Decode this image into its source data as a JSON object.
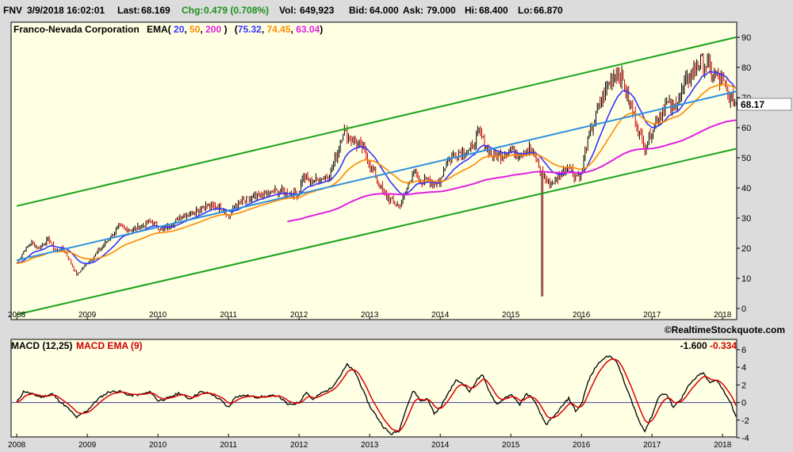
{
  "quote": {
    "symbol": "FNV",
    "datetime": "3/9/2018 16:02:01",
    "last_label": "Last:",
    "last": "68.169",
    "chg_label": "Chg:",
    "chg": "0.479 (0.708%)",
    "vol_label": "Vol:",
    "vol": "649,923",
    "bid_label": "Bid:",
    "bid": "64.000",
    "ask_label": "Ask:",
    "ask": "79.000",
    "hi_label": "Hi:",
    "hi": "68.400",
    "lo_label": "Lo:",
    "lo": "66.870"
  },
  "price_panel": {
    "company": "Franco-Nevada Corporation",
    "ema_label": "EMA(",
    "ema_periods": [
      "20",
      "50",
      "200"
    ],
    "ema_close": ")",
    "ema_values": [
      "75.32",
      "74.45",
      "63.04"
    ],
    "last_price": "68.17",
    "copyright": "©RealtimeStockquote.com"
  },
  "macd_panel": {
    "label": "MACD (12,25)",
    "ema_label": "MACD EMA (9)",
    "macd_value": "-1.600",
    "signal_value": "-0.334"
  },
  "colors": {
    "panel_bg": "#ffffe4",
    "ema20": "#3333ff",
    "ema50": "#ff8800",
    "ema200": "#e020e0",
    "channel": "#1aa31a",
    "regression": "#2f8fdd",
    "up_bar": "#000000",
    "down_bar": "#cc0000",
    "macd": "#000000",
    "macd_signal": "#dd0000",
    "zero_line": "#4040a0"
  },
  "chart_data": [
    {
      "type": "line",
      "panel": "price",
      "title": "Franco-Nevada Corporation",
      "ylim": [
        0,
        90
      ],
      "yticks": [
        0,
        10,
        20,
        30,
        40,
        50,
        60,
        70,
        80,
        90
      ],
      "xlim": [
        2007.92,
        2018.2
      ],
      "xticks": [
        "2008",
        "2009",
        "2010",
        "2011",
        "2012",
        "2013",
        "2014",
        "2015",
        "2016",
        "2017",
        "2018"
      ],
      "grid": false,
      "price_path": [
        [
          2008.0,
          15
        ],
        [
          2008.1,
          19
        ],
        [
          2008.2,
          22
        ],
        [
          2008.3,
          20
        ],
        [
          2008.45,
          23
        ],
        [
          2008.55,
          19
        ],
        [
          2008.65,
          20
        ],
        [
          2008.75,
          16
        ],
        [
          2008.85,
          11
        ],
        [
          2008.95,
          14
        ],
        [
          2009.05,
          16
        ],
        [
          2009.15,
          19
        ],
        [
          2009.3,
          23
        ],
        [
          2009.45,
          27
        ],
        [
          2009.6,
          26
        ],
        [
          2009.75,
          27
        ],
        [
          2009.9,
          29
        ],
        [
          2010.05,
          26
        ],
        [
          2010.2,
          28
        ],
        [
          2010.35,
          31
        ],
        [
          2010.5,
          32
        ],
        [
          2010.65,
          34
        ],
        [
          2010.8,
          34
        ],
        [
          2010.95,
          33
        ],
        [
          2011.0,
          30
        ],
        [
          2011.1,
          34
        ],
        [
          2011.25,
          36
        ],
        [
          2011.4,
          37
        ],
        [
          2011.55,
          38
        ],
        [
          2011.7,
          39
        ],
        [
          2011.85,
          38
        ],
        [
          2012.0,
          38
        ],
        [
          2012.05,
          44
        ],
        [
          2012.15,
          42
        ],
        [
          2012.3,
          43
        ],
        [
          2012.45,
          45
        ],
        [
          2012.55,
          52
        ],
        [
          2012.62,
          59
        ],
        [
          2012.7,
          57
        ],
        [
          2012.8,
          55
        ],
        [
          2012.9,
          53
        ],
        [
          2013.0,
          48
        ],
        [
          2013.1,
          43
        ],
        [
          2013.2,
          38
        ],
        [
          2013.3,
          36
        ],
        [
          2013.42,
          34
        ],
        [
          2013.5,
          38
        ],
        [
          2013.62,
          46
        ],
        [
          2013.72,
          41
        ],
        [
          2013.82,
          44
        ],
        [
          2013.92,
          40
        ],
        [
          2014.0,
          43
        ],
        [
          2014.1,
          49
        ],
        [
          2014.2,
          51
        ],
        [
          2014.3,
          52
        ],
        [
          2014.45,
          53
        ],
        [
          2014.55,
          58
        ],
        [
          2014.65,
          54
        ],
        [
          2014.75,
          50
        ],
        [
          2014.85,
          51
        ],
        [
          2015.0,
          53
        ],
        [
          2015.1,
          51
        ],
        [
          2015.25,
          53
        ],
        [
          2015.35,
          50
        ],
        [
          2015.45,
          44
        ],
        [
          2015.55,
          41
        ],
        [
          2015.65,
          43
        ],
        [
          2015.75,
          46
        ],
        [
          2015.82,
          48
        ],
        [
          2015.9,
          44
        ],
        [
          2016.0,
          44
        ],
        [
          2016.05,
          52
        ],
        [
          2016.15,
          60
        ],
        [
          2016.25,
          67
        ],
        [
          2016.4,
          75
        ],
        [
          2016.5,
          79
        ],
        [
          2016.58,
          76
        ],
        [
          2016.65,
          70
        ],
        [
          2016.72,
          66
        ],
        [
          2016.82,
          58
        ],
        [
          2016.9,
          54
        ],
        [
          2017.0,
          59
        ],
        [
          2017.1,
          64
        ],
        [
          2017.2,
          68
        ],
        [
          2017.3,
          66
        ],
        [
          2017.4,
          71
        ],
        [
          2017.5,
          76
        ],
        [
          2017.6,
          80
        ],
        [
          2017.7,
          82
        ],
        [
          2017.8,
          80
        ],
        [
          2017.9,
          77
        ],
        [
          2018.0,
          75
        ],
        [
          2018.1,
          70
        ],
        [
          2018.19,
          68.17
        ]
      ],
      "series": [
        {
          "name": "EMA(20)",
          "last": 75.32
        },
        {
          "name": "EMA(50)",
          "last": 74.45
        },
        {
          "name": "EMA(200)",
          "last": 63.04
        },
        {
          "name": "Regression line",
          "points": [
            [
              2008.0,
              16
            ],
            [
              2018.19,
              72
            ]
          ]
        },
        {
          "name": "Upper channel",
          "points": [
            [
              2008.0,
              34
            ],
            [
              2018.19,
              90
            ]
          ]
        },
        {
          "name": "Lower channel",
          "points": [
            [
              2008.0,
              -2
            ],
            [
              2018.19,
              53
            ]
          ]
        }
      ],
      "spike_low": {
        "x": 2015.45,
        "low": 4
      },
      "last_value": 68.17
    },
    {
      "type": "line",
      "panel": "macd",
      "title": "MACD (12,25)",
      "ylim": [
        -4,
        6
      ],
      "yticks": [
        -4,
        -2,
        0,
        2,
        4,
        6
      ],
      "xlim": [
        2007.92,
        2018.2
      ],
      "xticks": [
        "2008",
        "2009",
        "2010",
        "2011",
        "2012",
        "2013",
        "2014",
        "2015",
        "2016",
        "2017",
        "2018"
      ],
      "macd_path": [
        [
          2008.0,
          0
        ],
        [
          2008.1,
          1.3
        ],
        [
          2008.2,
          1.0
        ],
        [
          2008.35,
          0.6
        ],
        [
          2008.5,
          1.0
        ],
        [
          2008.6,
          0.2
        ],
        [
          2008.72,
          -0.6
        ],
        [
          2008.85,
          -1.7
        ],
        [
          2009.0,
          -0.9
        ],
        [
          2009.15,
          0.4
        ],
        [
          2009.3,
          1.2
        ],
        [
          2009.45,
          1.3
        ],
        [
          2009.6,
          0.8
        ],
        [
          2009.75,
          0.9
        ],
        [
          2009.9,
          1.2
        ],
        [
          2010.0,
          0.2
        ],
        [
          2010.15,
          0.5
        ],
        [
          2010.3,
          1.1
        ],
        [
          2010.45,
          0.4
        ],
        [
          2010.6,
          1.2
        ],
        [
          2010.75,
          1.0
        ],
        [
          2010.9,
          0.2
        ],
        [
          2011.0,
          -0.6
        ],
        [
          2011.1,
          0.7
        ],
        [
          2011.25,
          0.8
        ],
        [
          2011.4,
          0.6
        ],
        [
          2011.55,
          0.7
        ],
        [
          2011.7,
          0.8
        ],
        [
          2011.85,
          -0.3
        ],
        [
          2012.0,
          0.0
        ],
        [
          2012.1,
          1.2
        ],
        [
          2012.2,
          0.3
        ],
        [
          2012.3,
          1.0
        ],
        [
          2012.45,
          1.6
        ],
        [
          2012.58,
          3.0
        ],
        [
          2012.68,
          4.3
        ],
        [
          2012.8,
          3.4
        ],
        [
          2012.9,
          1.5
        ],
        [
          2013.0,
          -0.4
        ],
        [
          2013.1,
          -1.6
        ],
        [
          2013.2,
          -2.8
        ],
        [
          2013.3,
          -3.6
        ],
        [
          2013.42,
          -3.2
        ],
        [
          2013.5,
          -1.0
        ],
        [
          2013.62,
          1.4
        ],
        [
          2013.72,
          0.2
        ],
        [
          2013.82,
          0.4
        ],
        [
          2013.92,
          -1.3
        ],
        [
          2014.0,
          -0.6
        ],
        [
          2014.1,
          0.9
        ],
        [
          2014.22,
          2.5
        ],
        [
          2014.32,
          2.2
        ],
        [
          2014.42,
          1.2
        ],
        [
          2014.52,
          2.6
        ],
        [
          2014.6,
          3.1
        ],
        [
          2014.7,
          1.2
        ],
        [
          2014.8,
          -0.2
        ],
        [
          2014.92,
          0.5
        ],
        [
          2015.02,
          0.9
        ],
        [
          2015.12,
          -0.3
        ],
        [
          2015.22,
          1.0
        ],
        [
          2015.32,
          0.4
        ],
        [
          2015.42,
          -1.3
        ],
        [
          2015.5,
          -2.5
        ],
        [
          2015.6,
          -1.7
        ],
        [
          2015.72,
          -0.5
        ],
        [
          2015.82,
          0.5
        ],
        [
          2015.92,
          -1.0
        ],
        [
          2016.0,
          -0.2
        ],
        [
          2016.1,
          2.5
        ],
        [
          2016.2,
          4.0
        ],
        [
          2016.3,
          5.0
        ],
        [
          2016.42,
          5.3
        ],
        [
          2016.52,
          4.3
        ],
        [
          2016.62,
          2.0
        ],
        [
          2016.72,
          0.0
        ],
        [
          2016.82,
          -2.2
        ],
        [
          2016.9,
          -3.2
        ],
        [
          2017.0,
          -1.5
        ],
        [
          2017.1,
          0.8
        ],
        [
          2017.2,
          1.0
        ],
        [
          2017.3,
          -0.5
        ],
        [
          2017.42,
          0.5
        ],
        [
          2017.52,
          1.9
        ],
        [
          2017.62,
          2.8
        ],
        [
          2017.72,
          3.4
        ],
        [
          2017.82,
          2.2
        ],
        [
          2017.92,
          2.6
        ],
        [
          2018.0,
          1.5
        ],
        [
          2018.1,
          0.2
        ],
        [
          2018.19,
          -1.6
        ]
      ],
      "series": [
        {
          "name": "MACD (12,25)",
          "last": -1.6
        },
        {
          "name": "MACD EMA (9)",
          "last": -0.334
        }
      ]
    }
  ]
}
